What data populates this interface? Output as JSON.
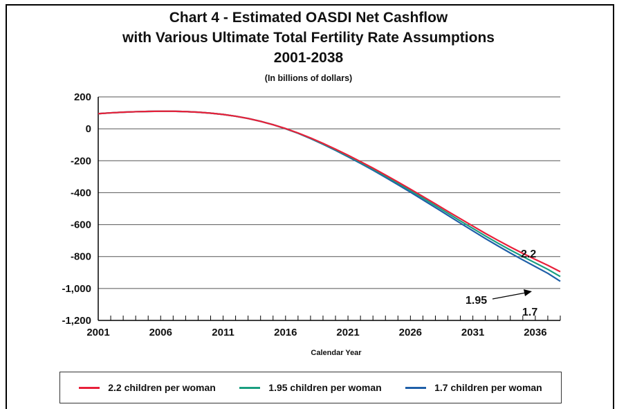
{
  "chart_data": {
    "type": "line",
    "title_lines": [
      "Chart 4 - Estimated OASDI Net Cashflow",
      "with Various Ultimate Total Fertility Rate Assumptions",
      "2001-2038"
    ],
    "subtitle": "(In billions of dollars)",
    "xlabel": "Calendar Year",
    "ylabel": "",
    "xlim": [
      2001,
      2038
    ],
    "ylim": [
      -1200,
      200
    ],
    "x_ticks": [
      2001,
      2006,
      2011,
      2016,
      2021,
      2026,
      2031,
      2036
    ],
    "y_ticks": [
      200,
      0,
      -200,
      -400,
      -600,
      -800,
      -1000,
      -1200
    ],
    "y_tick_labels": [
      "200",
      "0",
      "-200",
      "-400",
      "-600",
      "-800",
      "-1,000",
      "-1,200"
    ],
    "grid": "horizontal",
    "legend_position": "bottom",
    "x": [
      2001,
      2002,
      2003,
      2004,
      2005,
      2006,
      2007,
      2008,
      2009,
      2010,
      2011,
      2012,
      2013,
      2014,
      2015,
      2016,
      2017,
      2018,
      2019,
      2020,
      2021,
      2022,
      2023,
      2024,
      2025,
      2026,
      2027,
      2028,
      2029,
      2030,
      2031,
      2032,
      2033,
      2034,
      2035,
      2036,
      2037,
      2038
    ],
    "series": [
      {
        "name": "2.2 children per woman",
        "color": "#e8203a",
        "values": [
          95,
          100,
          104,
          107,
          109,
          110,
          110,
          108,
          104,
          98,
          90,
          79,
          65,
          47,
          26,
          2,
          -26,
          -57,
          -91,
          -127,
          -165,
          -205,
          -246,
          -289,
          -333,
          -378,
          -424,
          -470,
          -517,
          -563,
          -609,
          -655,
          -698,
          -740,
          -780,
          -818,
          -855,
          -895
        ]
      },
      {
        "name": "1.95 children per woman",
        "color": "#1a9e80",
        "values": [
          95,
          100,
          104,
          107,
          109,
          110,
          110,
          108,
          104,
          98,
          90,
          79,
          65,
          47,
          26,
          1,
          -27,
          -59,
          -94,
          -131,
          -170,
          -210,
          -252,
          -296,
          -341,
          -387,
          -434,
          -481,
          -529,
          -577,
          -624,
          -671,
          -716,
          -759,
          -800,
          -840,
          -880,
          -925
        ]
      },
      {
        "name": "1.7 children per woman",
        "color": "#1f5fa8",
        "values": [
          95,
          100,
          104,
          107,
          109,
          110,
          110,
          108,
          104,
          98,
          90,
          79,
          65,
          47,
          26,
          0,
          -28,
          -61,
          -97,
          -135,
          -175,
          -216,
          -259,
          -304,
          -350,
          -397,
          -445,
          -493,
          -542,
          -591,
          -639,
          -687,
          -733,
          -778,
          -821,
          -863,
          -905,
          -955
        ]
      }
    ],
    "annotations": [
      {
        "text": "2.2"
      },
      {
        "text": "1.95"
      },
      {
        "text": "1.7"
      }
    ]
  }
}
